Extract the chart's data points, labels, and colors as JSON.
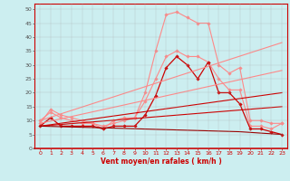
{
  "title": "",
  "xlabel": "Vent moyen/en rafales ( km/h )",
  "ylabel": "",
  "xlim": [
    -0.5,
    23.5
  ],
  "ylim": [
    0,
    52
  ],
  "yticks": [
    0,
    5,
    10,
    15,
    20,
    25,
    30,
    35,
    40,
    45,
    50
  ],
  "xticks": [
    0,
    1,
    2,
    3,
    4,
    5,
    6,
    7,
    8,
    9,
    10,
    11,
    12,
    13,
    14,
    15,
    16,
    17,
    18,
    19,
    20,
    21,
    22,
    23
  ],
  "background_color": "#cceef0",
  "grid_color": "#aaaaaa",
  "series": [
    {
      "name": "pink_wave1",
      "color": "#ff8888",
      "linewidth": 0.8,
      "marker": "D",
      "markersize": 1.8,
      "x": [
        0,
        1,
        2,
        3,
        4,
        5,
        6,
        7,
        8,
        9,
        10,
        11,
        12,
        13,
        14,
        15,
        16,
        17,
        18,
        19,
        20,
        21,
        22,
        23
      ],
      "y": [
        9,
        14,
        12,
        11,
        10,
        9,
        7,
        10,
        11,
        11,
        20,
        35,
        48,
        49,
        47,
        45,
        45,
        30,
        27,
        29,
        10,
        10,
        9,
        9
      ]
    },
    {
      "name": "pink_wave2",
      "color": "#ff8888",
      "linewidth": 0.8,
      "marker": "D",
      "markersize": 1.8,
      "x": [
        0,
        1,
        2,
        3,
        4,
        5,
        6,
        7,
        8,
        9,
        10,
        11,
        12,
        13,
        14,
        15,
        16,
        17,
        18,
        19,
        20,
        21,
        22,
        23
      ],
      "y": [
        10,
        13,
        11,
        10,
        9,
        9,
        8,
        9,
        10,
        11,
        17,
        25,
        33,
        35,
        33,
        33,
        31,
        25,
        21,
        21,
        8,
        8,
        7,
        9
      ]
    },
    {
      "name": "dark_red_wave",
      "color": "#cc0000",
      "linewidth": 0.9,
      "marker": "D",
      "markersize": 1.8,
      "x": [
        0,
        1,
        2,
        3,
        4,
        5,
        6,
        7,
        8,
        9,
        10,
        11,
        12,
        13,
        14,
        15,
        16,
        17,
        18,
        19,
        20,
        21,
        22,
        23
      ],
      "y": [
        8,
        11,
        8,
        8,
        8,
        8,
        7,
        8,
        8,
        8,
        12,
        19,
        29,
        33,
        30,
        25,
        31,
        20,
        20,
        16,
        7,
        7,
        6,
        5
      ]
    },
    {
      "name": "pink_trend1",
      "color": "#ff8888",
      "linewidth": 0.8,
      "marker": null,
      "x": [
        0,
        23
      ],
      "y": [
        10,
        38
      ]
    },
    {
      "name": "pink_trend2",
      "color": "#ff8888",
      "linewidth": 0.8,
      "marker": null,
      "x": [
        0,
        23
      ],
      "y": [
        9,
        28
      ]
    },
    {
      "name": "dark_trend1",
      "color": "#cc0000",
      "linewidth": 0.8,
      "marker": null,
      "x": [
        0,
        23
      ],
      "y": [
        8,
        20
      ]
    },
    {
      "name": "dark_trend2",
      "color": "#cc0000",
      "linewidth": 0.8,
      "marker": null,
      "x": [
        0,
        23
      ],
      "y": [
        8,
        15
      ]
    },
    {
      "name": "dark_flat",
      "color": "#990000",
      "linewidth": 0.8,
      "marker": null,
      "x": [
        0,
        5,
        19,
        23
      ],
      "y": [
        8,
        7.5,
        6,
        5
      ]
    }
  ]
}
